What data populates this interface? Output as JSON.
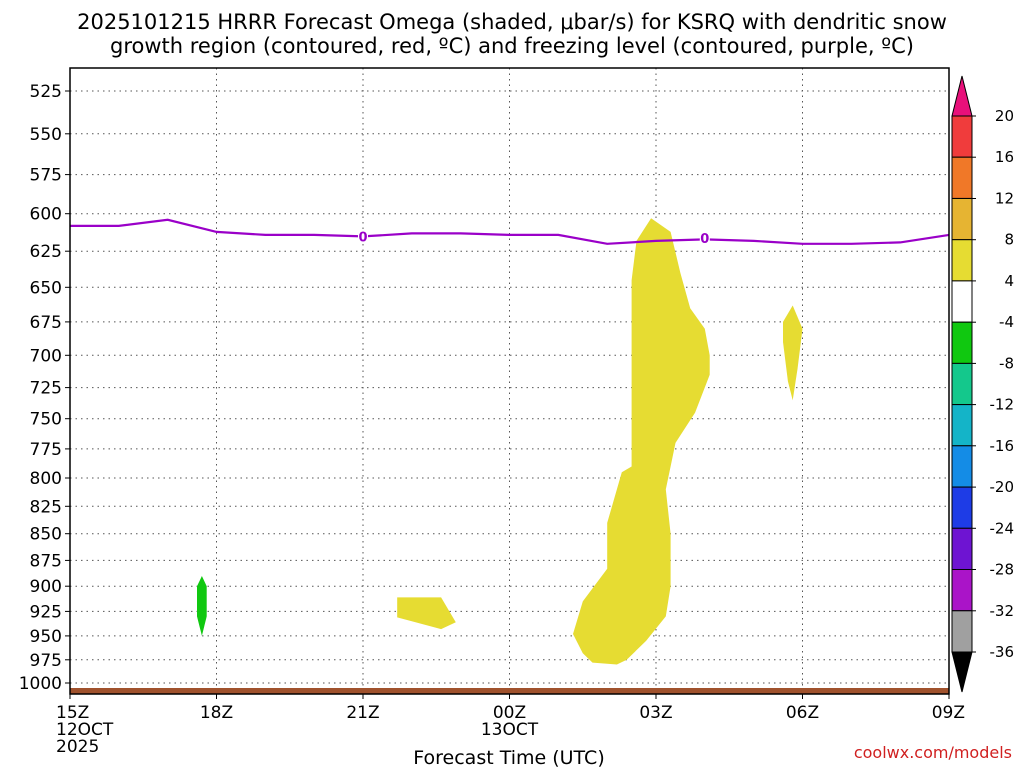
{
  "chart_data": {
    "type": "time-height contour",
    "title_lines": [
      "2025101215 HRRR Forecast Omega (shaded, μbar/s) for KSRQ with dendritic snow",
      "growth region (contoured, red, ºC) and freezing level (contoured, purple, ºC)"
    ],
    "xlabel": "Forecast Time (UTC)",
    "x_ticks": [
      {
        "hours": 0,
        "lines": [
          "15Z",
          "12OCT",
          "2025"
        ]
      },
      {
        "hours": 3,
        "lines": [
          "18Z"
        ]
      },
      {
        "hours": 6,
        "lines": [
          "21Z"
        ]
      },
      {
        "hours": 9,
        "lines": [
          "00Z",
          "13OCT"
        ]
      },
      {
        "hours": 12,
        "lines": [
          "03Z"
        ]
      },
      {
        "hours": 15,
        "lines": [
          "06Z"
        ]
      },
      {
        "hours": 18,
        "lines": [
          "09Z"
        ]
      }
    ],
    "x_range_hours": [
      0,
      18
    ],
    "y_ticks": [
      525,
      550,
      575,
      600,
      625,
      650,
      675,
      700,
      725,
      750,
      775,
      800,
      825,
      850,
      875,
      900,
      925,
      950,
      975,
      1000
    ],
    "y_range_hPa": [
      512,
      1012
    ],
    "grid": true,
    "colorbar": {
      "labels": [
        "20",
        "16",
        "12",
        "8",
        "4",
        "-4",
        "-8",
        "-12",
        "-16",
        "-20",
        "-24",
        "-28",
        "-32",
        "-36"
      ],
      "colors": [
        "#e8107a",
        "#f03c3c",
        "#f07828",
        "#e6b432",
        "#e6dc32",
        "#ffffff",
        "#10c810",
        "#14c88c",
        "#14b4c8",
        "#148ce6",
        "#1e3ce6",
        "#6e14d2",
        "#aa14c8",
        "#a0a0a0",
        "#000000"
      ]
    },
    "freezing_level": {
      "label": "0",
      "color": "#9a00c8",
      "points": [
        [
          0,
          608
        ],
        [
          1,
          608
        ],
        [
          2,
          604
        ],
        [
          3,
          612
        ],
        [
          4,
          614
        ],
        [
          5,
          614
        ],
        [
          6,
          615
        ],
        [
          7,
          613
        ],
        [
          8,
          613
        ],
        [
          9,
          614
        ],
        [
          10,
          614
        ],
        [
          11,
          620
        ],
        [
          12,
          618
        ],
        [
          13,
          617
        ],
        [
          14,
          618
        ],
        [
          15,
          620
        ],
        [
          16,
          620
        ],
        [
          17,
          619
        ],
        [
          18,
          614
        ]
      ],
      "label_positions": [
        [
          6,
          615
        ],
        [
          13,
          616
        ]
      ]
    },
    "omega_regions": [
      {
        "value_range": "4 to 8",
        "color": "#e6dc32",
        "polygon": [
          [
            11.5,
            645
          ],
          [
            11.6,
            618
          ],
          [
            11.9,
            603
          ],
          [
            12.3,
            612
          ],
          [
            12.5,
            640
          ],
          [
            12.7,
            665
          ],
          [
            13.0,
            680
          ],
          [
            13.1,
            700
          ],
          [
            13.1,
            715
          ],
          [
            12.8,
            745
          ],
          [
            12.4,
            770
          ],
          [
            12.3,
            790
          ],
          [
            12.2,
            810
          ],
          [
            12.3,
            850
          ],
          [
            12.3,
            900
          ],
          [
            12.2,
            930
          ],
          [
            11.8,
            955
          ],
          [
            11.4,
            975
          ],
          [
            11.2,
            980
          ],
          [
            10.7,
            978
          ],
          [
            10.5,
            968
          ],
          [
            10.3,
            948
          ],
          [
            10.5,
            915
          ],
          [
            11.0,
            883
          ],
          [
            11.0,
            840
          ],
          [
            11.3,
            795
          ],
          [
            11.5,
            790
          ],
          [
            11.5,
            700
          ]
        ]
      },
      {
        "value_range": "4 to 8",
        "color": "#e6dc32",
        "polygon": [
          [
            14.6,
            675
          ],
          [
            14.8,
            663
          ],
          [
            15.0,
            680
          ],
          [
            14.9,
            710
          ],
          [
            14.8,
            735
          ],
          [
            14.7,
            720
          ],
          [
            14.6,
            690
          ]
        ]
      },
      {
        "value_range": "4 to 8",
        "color": "#e6dc32",
        "polygon": [
          [
            6.7,
            911
          ],
          [
            7.6,
            911
          ],
          [
            7.9,
            936
          ],
          [
            7.6,
            943
          ],
          [
            7.0,
            935
          ],
          [
            6.7,
            931
          ]
        ]
      },
      {
        "value_range": "-8 to -4",
        "color": "#10c810",
        "polygon": [
          [
            2.7,
            890
          ],
          [
            2.8,
            900
          ],
          [
            2.8,
            930
          ],
          [
            2.7,
            950
          ],
          [
            2.6,
            930
          ],
          [
            2.6,
            900
          ]
        ]
      }
    ],
    "terrain_color": "#a0522d"
  },
  "credit": "coolwx.com/models"
}
